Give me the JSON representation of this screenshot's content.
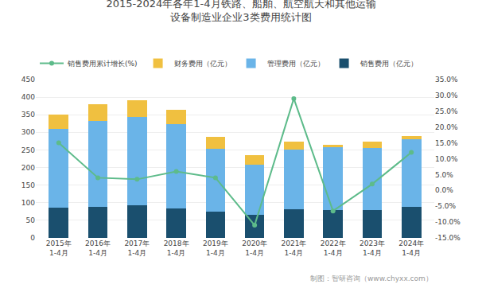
{
  "chart_data": {
    "type": "bar",
    "stacked": true,
    "title": "2015-2024年各年1-4月铁路、船舶、航空航天和其他运输\n设备制造业企业3类费用统计图",
    "categories": [
      "2015年\n1-4月",
      "2016年\n1-4月",
      "2017年\n1-4月",
      "2018年\n1-4月",
      "2019年\n1-4月",
      "2020年\n1-4月",
      "2021年\n1-4月",
      "2022年\n1-4月",
      "2023年\n1-4月",
      "2024年\n1-4月"
    ],
    "series": [
      {
        "name": "销售费用（亿元）",
        "type": "bar",
        "color": "#1a4f6e",
        "values": [
          85,
          88,
          92,
          83,
          75,
          65,
          82,
          79,
          80,
          88
        ]
      },
      {
        "name": "管理费用（亿元）",
        "type": "bar",
        "color": "#6ab4e8",
        "values": [
          225,
          245,
          252,
          240,
          178,
          143,
          170,
          178,
          175,
          193
        ]
      },
      {
        "name": "财务费用（亿元）",
        "type": "bar",
        "color": "#f0c040",
        "values": [
          40,
          48,
          48,
          42,
          35,
          28,
          22,
          8,
          18,
          8
        ]
      },
      {
        "name": "销售费用累计增长(%)",
        "type": "line",
        "axis": "y2",
        "marker": "circle",
        "color": "#5dbb8a",
        "values": [
          15.0,
          4.0,
          3.5,
          6.0,
          4.0,
          -11.0,
          29.0,
          -6.5,
          2.0,
          12.0
        ]
      }
    ],
    "ylim": [
      0,
      450
    ],
    "yticks": [
      0,
      50,
      100,
      150,
      200,
      250,
      300,
      350,
      400,
      450
    ],
    "y2lim": [
      -15.0,
      35.0
    ],
    "y2ticks": [
      {
        "value": -15.0,
        "label": "-15.0%"
      },
      {
        "value": -10.0,
        "label": "-10.0%"
      },
      {
        "value": -5.0,
        "label": "-5.0%"
      },
      {
        "value": 0.0,
        "label": "0.0%"
      },
      {
        "value": 5.0,
        "label": "5.0%"
      },
      {
        "value": 10.0,
        "label": "10.0%"
      },
      {
        "value": 15.0,
        "label": "15.0%"
      },
      {
        "value": 20.0,
        "label": "20.0%"
      },
      {
        "value": 25.0,
        "label": "25.0%"
      },
      {
        "value": 30.0,
        "label": "30.0%"
      },
      {
        "value": 35.0,
        "label": "35.0%"
      }
    ],
    "grid": true,
    "legend": "top",
    "annotations": [
      "制图：智研咨询（www.chyxx.com）"
    ]
  }
}
